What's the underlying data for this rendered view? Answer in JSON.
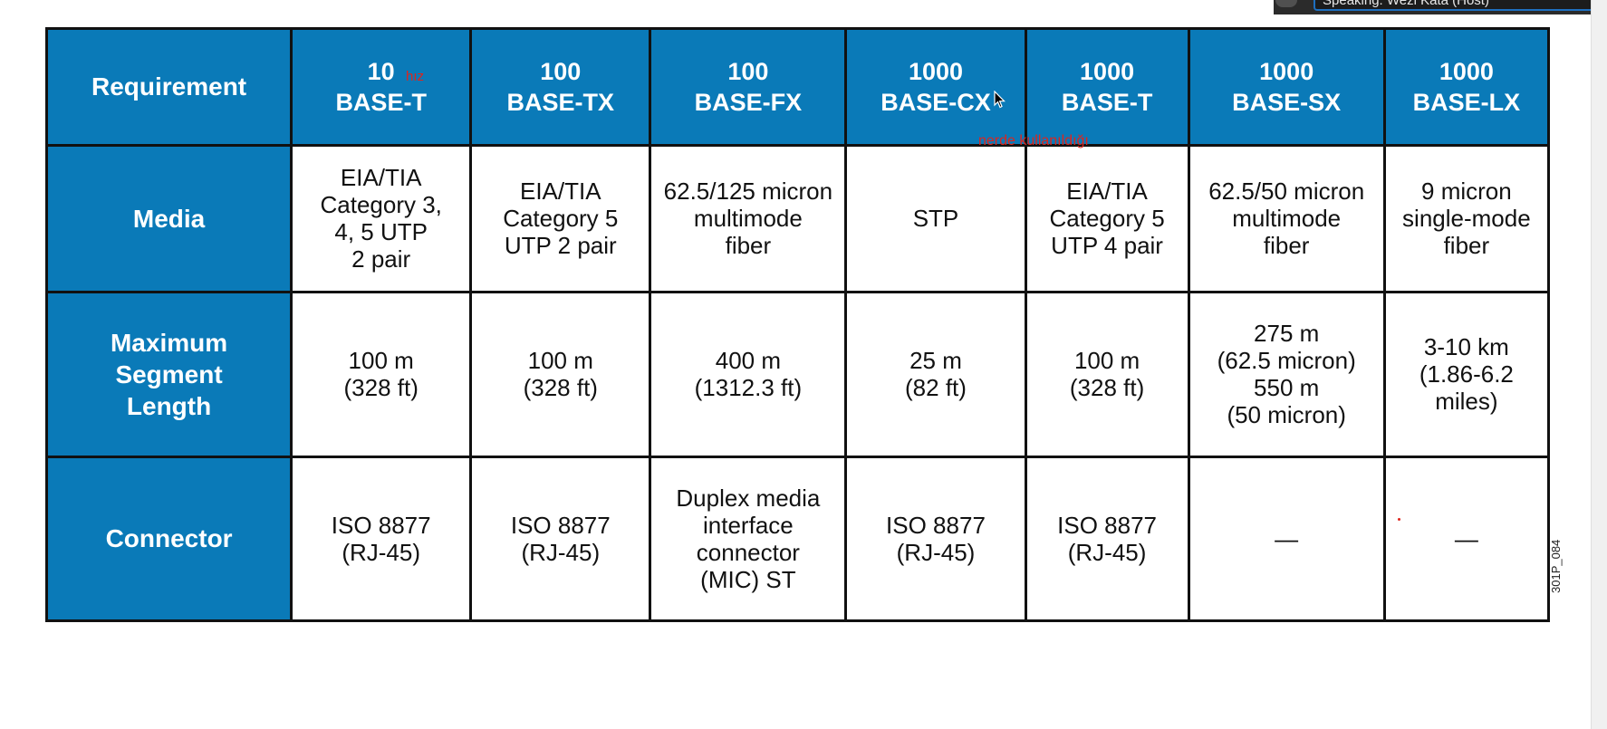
{
  "top_bar": {
    "field_text": "Speaking: Wezi Kata (Host)"
  },
  "table": {
    "corner_label": "Requirement",
    "columns": [
      {
        "line1": "10",
        "line2": "BASE-T"
      },
      {
        "line1": "100",
        "line2": "BASE-TX"
      },
      {
        "line1": "100",
        "line2": "BASE-FX"
      },
      {
        "line1": "1000",
        "line2": "BASE-CX"
      },
      {
        "line1": "1000",
        "line2": "BASE-T"
      },
      {
        "line1": "1000",
        "line2": "BASE-SX"
      },
      {
        "line1": "1000",
        "line2": "BASE-LX"
      }
    ],
    "rows": [
      {
        "label": "Media",
        "cells": [
          "EIA/TIA\nCategory 3,\n4, 5 UTP\n2 pair",
          "EIA/TIA\nCategory 5\nUTP 2 pair",
          "62.5/125 micron\nmultimode\nfiber",
          "STP",
          "EIA/TIA\nCategory 5\nUTP 4 pair",
          "62.5/50 micron\nmultimode\nfiber",
          "9 micron\nsingle-mode\nfiber"
        ]
      },
      {
        "label": "Maximum\nSegment\nLength",
        "cells": [
          "100 m\n(328 ft)",
          "100 m\n(328 ft)",
          "400 m\n(1312.3 ft)",
          "25 m\n(82 ft)",
          "100 m\n(328 ft)",
          "275 m\n(62.5 micron)\n550 m\n(50 micron)",
          "3-10 km\n(1.86-6.2\nmiles)"
        ]
      },
      {
        "label": "Connector",
        "cells": [
          "ISO 8877\n(RJ-45)",
          "ISO 8877\n(RJ-45)",
          "Duplex media\ninterface\nconnector\n(MIC) ST",
          "ISO 8877\n(RJ-45)",
          "ISO 8877\n(RJ-45)",
          "—",
          "—"
        ]
      }
    ]
  },
  "annotations": {
    "speed_note": "hız",
    "usage_note": "nerde kullanıldığı"
  },
  "figure_id": "301P_084",
  "colors": {
    "header_blue": "#0a7ab8",
    "annotation_red": "#e0241c"
  }
}
